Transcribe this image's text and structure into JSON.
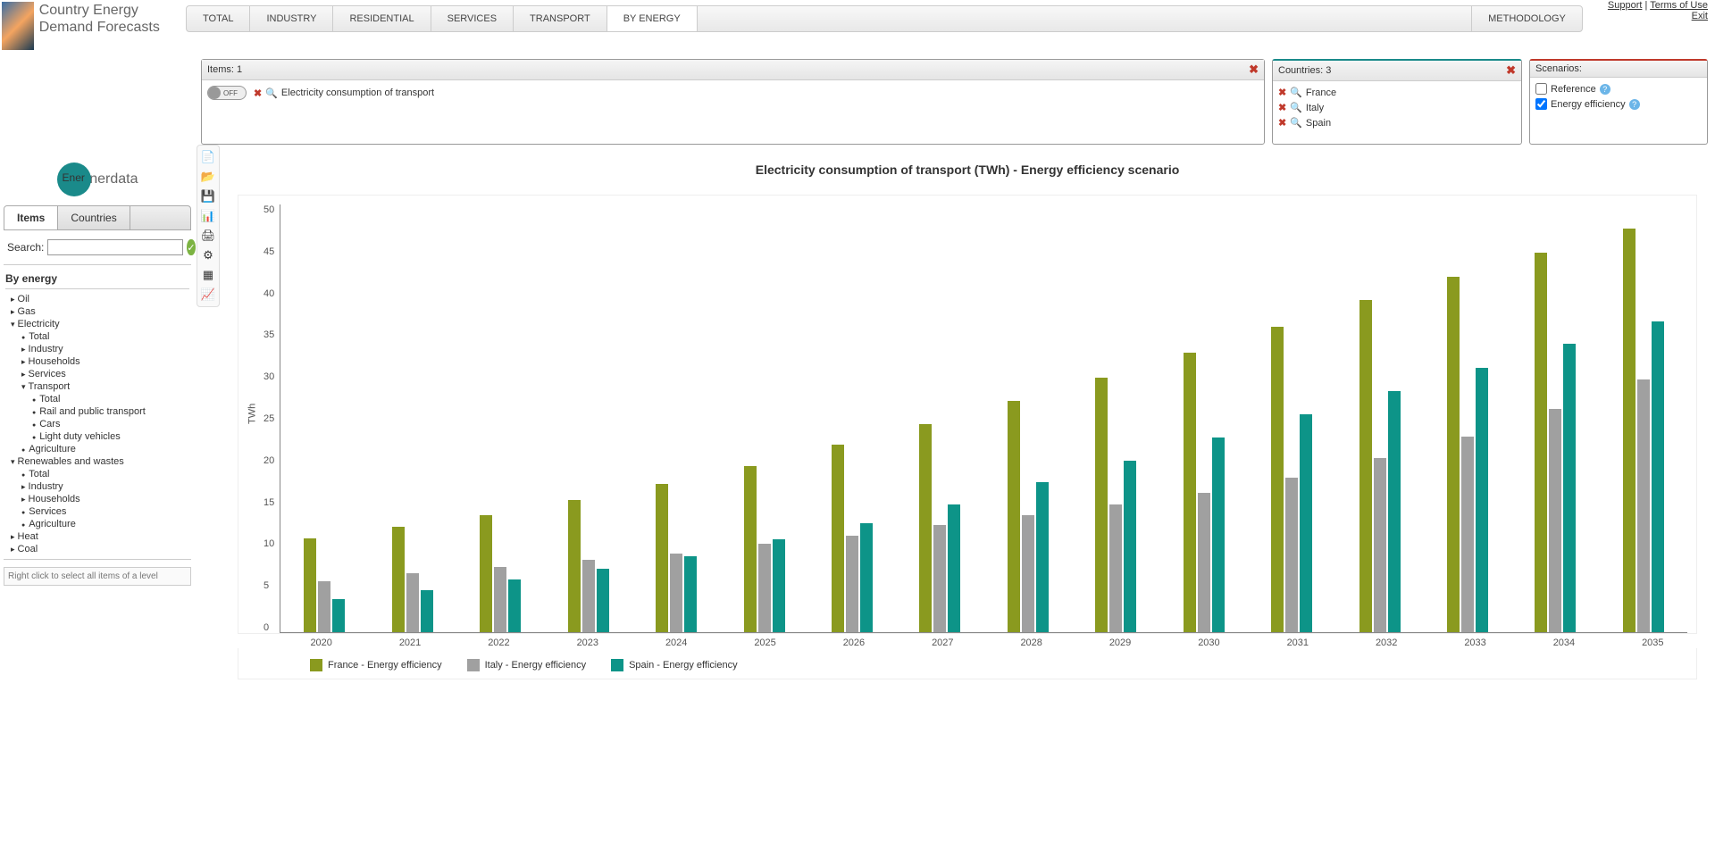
{
  "app_title": "Country Energy Demand Forecasts",
  "top_links": {
    "support": "Support",
    "terms": "Terms of Use",
    "exit": "Exit"
  },
  "main_tabs": [
    "TOTAL",
    "INDUSTRY",
    "RESIDENTIAL",
    "SERVICES",
    "TRANSPORT",
    "BY ENERGY"
  ],
  "main_tab_active": "BY ENERGY",
  "methodology": "METHODOLOGY",
  "filters": {
    "items": {
      "header": "Items: 1",
      "toggle": "OFF",
      "item": "Electricity consumption of transport"
    },
    "countries": {
      "header": "Countries: 3",
      "list": [
        "France",
        "Italy",
        "Spain"
      ]
    },
    "scenarios": {
      "header": "Scenarios:",
      "options": [
        {
          "label": "Reference",
          "checked": false
        },
        {
          "label": "Energy efficiency",
          "checked": true
        }
      ]
    }
  },
  "brand": "Enerdata",
  "side_tabs": [
    "Items",
    "Countries"
  ],
  "side_tab_active": "Items",
  "search_label": "Search:",
  "tree_heading": "By energy",
  "tree": [
    {
      "label": "Oil",
      "lvl": 1,
      "type": "arrow"
    },
    {
      "label": "Gas",
      "lvl": 1,
      "type": "arrow"
    },
    {
      "label": "Electricity",
      "lvl": 1,
      "type": "arrow-down"
    },
    {
      "label": "Total",
      "lvl": 2,
      "type": "bullet"
    },
    {
      "label": "Industry",
      "lvl": 2,
      "type": "arrow"
    },
    {
      "label": "Households",
      "lvl": 2,
      "type": "arrow"
    },
    {
      "label": "Services",
      "lvl": 2,
      "type": "arrow"
    },
    {
      "label": "Transport",
      "lvl": 2,
      "type": "arrow-down"
    },
    {
      "label": "Total",
      "lvl": 3,
      "type": "bullet"
    },
    {
      "label": "Rail and public transport",
      "lvl": 3,
      "type": "bullet"
    },
    {
      "label": "Cars",
      "lvl": 3,
      "type": "bullet"
    },
    {
      "label": "Light duty vehicles",
      "lvl": 3,
      "type": "bullet"
    },
    {
      "label": "Agriculture",
      "lvl": 2,
      "type": "bullet"
    },
    {
      "label": "Renewables and wastes",
      "lvl": 1,
      "type": "arrow-down"
    },
    {
      "label": "Total",
      "lvl": 2,
      "type": "bullet"
    },
    {
      "label": "Industry",
      "lvl": 2,
      "type": "arrow"
    },
    {
      "label": "Households",
      "lvl": 2,
      "type": "arrow"
    },
    {
      "label": "Services",
      "lvl": 2,
      "type": "bullet"
    },
    {
      "label": "Agriculture",
      "lvl": 2,
      "type": "bullet"
    },
    {
      "label": "Heat",
      "lvl": 1,
      "type": "arrow"
    },
    {
      "label": "Coal",
      "lvl": 1,
      "type": "arrow"
    }
  ],
  "hint": "Right click to select all items of a level",
  "toolbar_icons": [
    "📄",
    "📂",
    "💾",
    "📊",
    "🖨",
    "⚙",
    "▦",
    "📈"
  ],
  "chart": {
    "title": "Electricity consumption of transport (TWh) - Energy efficiency scenario",
    "ylabel": "TWh",
    "ymax": 50,
    "ytick_step": 5,
    "years": [
      "2020",
      "2021",
      "2022",
      "2023",
      "2024",
      "2025",
      "2026",
      "2027",
      "2028",
      "2029",
      "2030",
      "2031",
      "2032",
      "2033",
      "2034",
      "2035"
    ],
    "series": [
      {
        "label": "France - Energy efficiency",
        "color": "#8a9a1f",
        "values": [
          10.9,
          12.3,
          13.6,
          15.4,
          17.3,
          19.4,
          21.9,
          24.3,
          27.0,
          29.7,
          32.6,
          35.6,
          38.7,
          41.5,
          44.3,
          47.1
        ]
      },
      {
        "label": "Italy - Energy efficiency",
        "color": "#a0a0a0",
        "values": [
          5.9,
          6.9,
          7.6,
          8.4,
          9.2,
          10.3,
          11.2,
          12.5,
          13.6,
          14.9,
          16.3,
          18.0,
          20.3,
          22.8,
          26.0,
          29.5
        ]
      },
      {
        "label": "Spain - Energy efficiency",
        "color": "#0d9488",
        "values": [
          3.9,
          4.9,
          6.1,
          7.4,
          8.9,
          10.8,
          12.7,
          14.9,
          17.5,
          20.0,
          22.7,
          25.4,
          28.1,
          30.8,
          33.6,
          36.3
        ]
      }
    ],
    "background": "#ffffff"
  }
}
